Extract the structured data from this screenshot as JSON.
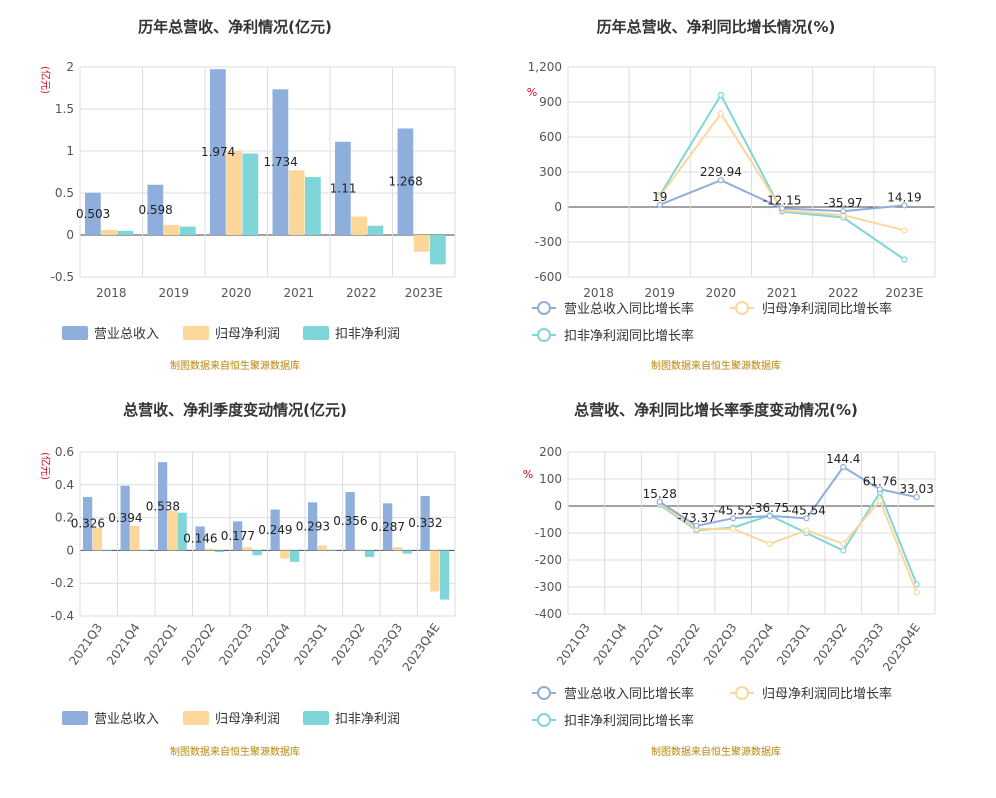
{
  "colors": {
    "revenue": "#8eaedb",
    "parent_profit": "#fdd79a",
    "deducted_profit": "#7fd6d8",
    "grid": "#dedede",
    "axis": "#555555",
    "title": "#333333",
    "unit": "#d9001b",
    "source": "#b8860b"
  },
  "chart_data": [
    {
      "id": "annual-values",
      "type": "bar",
      "title": "历年总营收、净利情况(亿元)",
      "unit_label": "(亿元)",
      "categories": [
        "2018",
        "2019",
        "2020",
        "2021",
        "2022",
        "2023E"
      ],
      "series": [
        {
          "name": "营业总收入",
          "values": [
            0.503,
            0.598,
            1.974,
            1.734,
            1.11,
            1.268
          ],
          "labeled": true
        },
        {
          "name": "归母净利润",
          "values": [
            0.06,
            0.12,
            1.0,
            0.77,
            0.22,
            -0.2
          ]
        },
        {
          "name": "扣非净利润",
          "values": [
            0.05,
            0.1,
            0.97,
            0.69,
            0.11,
            -0.35
          ]
        }
      ],
      "y_ticks": [
        "-0.5",
        "0",
        "0.5",
        "1",
        "1.5",
        "2"
      ],
      "ylim": [
        -0.5,
        2.0
      ],
      "rotate_x_labels": false,
      "source": "制图数据来自恒生聚源数据库"
    },
    {
      "id": "annual-growth",
      "type": "line",
      "title": "历年总营收、净利同比增长情况(%)",
      "unit_label": "%",
      "categories": [
        "2018",
        "2019",
        "2020",
        "2021",
        "2022",
        "2023E"
      ],
      "series": [
        {
          "name": "营业总收入同比增长率",
          "values": [
            null,
            19,
            229.94,
            -12.15,
            -35.97,
            14.19
          ],
          "labeled": true
        },
        {
          "name": "归母净利润同比增长率",
          "values": [
            null,
            90,
            800,
            -30,
            -70,
            -200
          ]
        },
        {
          "name": "扣非净利润同比增长率",
          "values": [
            null,
            100,
            960,
            -40,
            -90,
            -450
          ]
        }
      ],
      "y_ticks": [
        "-600",
        "-300",
        "0",
        "300",
        "600",
        "900",
        "1,200"
      ],
      "ylim": [
        -600,
        1200
      ],
      "rotate_x_labels": false,
      "source": "制图数据来自恒生聚源数据库"
    },
    {
      "id": "quarterly-values",
      "type": "bar",
      "title": "总营收、净利季度变动情况(亿元)",
      "unit_label": "(亿元)",
      "categories": [
        "2021Q3",
        "2021Q4",
        "2022Q1",
        "2022Q2",
        "2022Q3",
        "2022Q4",
        "2023Q1",
        "2023Q2",
        "2023Q3",
        "2023Q4E"
      ],
      "series": [
        {
          "name": "营业总收入",
          "values": [
            0.326,
            0.394,
            0.538,
            0.146,
            0.177,
            0.249,
            0.293,
            0.356,
            0.287,
            0.332
          ],
          "labeled": true
        },
        {
          "name": "归母净利润",
          "values": [
            0.14,
            0.15,
            0.24,
            0.01,
            0.02,
            -0.05,
            0.03,
            0.0,
            0.02,
            -0.25
          ]
        },
        {
          "name": "扣非净利润",
          "values": [
            0.0,
            0.0,
            0.23,
            -0.01,
            -0.03,
            -0.07,
            0.0,
            -0.04,
            -0.02,
            -0.3
          ]
        }
      ],
      "y_ticks": [
        "-0.4",
        "-0.2",
        "0",
        "0.2",
        "0.4",
        "0.6"
      ],
      "ylim": [
        -0.4,
        0.6
      ],
      "rotate_x_labels": true,
      "source": "制图数据来自恒生聚源数据库"
    },
    {
      "id": "quarterly-growth",
      "type": "line",
      "title": "总营收、净利同比增长率季度变动情况(%)",
      "unit_label": "%",
      "categories": [
        "2021Q3",
        "2021Q4",
        "2022Q1",
        "2022Q2",
        "2022Q3",
        "2022Q4",
        "2023Q1",
        "2023Q2",
        "2023Q3",
        "2023Q4E"
      ],
      "series": [
        {
          "name": "营业总收入同比增长率",
          "values": [
            null,
            null,
            15.28,
            -73.37,
            -45.52,
            -36.75,
            -45.54,
            144.4,
            61.76,
            33.03
          ],
          "labeled": true
        },
        {
          "name": "归母净利润同比增长率",
          "values": [
            null,
            null,
            10,
            -85,
            -85,
            -140,
            -90,
            -140,
            20,
            -320
          ]
        },
        {
          "name": "扣非净利润同比增长率",
          "values": [
            null,
            null,
            5,
            -90,
            -80,
            -35,
            -100,
            -165,
            50,
            -290
          ]
        }
      ],
      "y_ticks": [
        "-400",
        "-300",
        "-200",
        "-100",
        "0",
        "100",
        "200"
      ],
      "ylim": [
        -400,
        200
      ],
      "rotate_x_labels": true,
      "source": "制图数据来自恒生聚源数据库"
    }
  ]
}
